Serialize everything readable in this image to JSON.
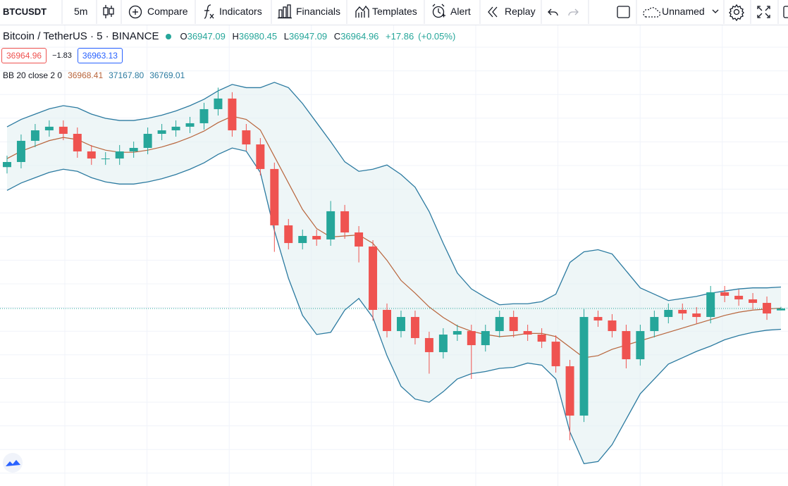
{
  "toolbar": {
    "symbol": "BTCUSDT",
    "interval": "5m",
    "compare": "Compare",
    "indicators": "Indicators",
    "financials": "Financials",
    "templates": "Templates",
    "alert": "Alert",
    "replay": "Replay",
    "layout_name": "Unnamed"
  },
  "legend": {
    "symbol": "Bitcoin / TetherUS · 5 · BINANCE",
    "open_label": "O",
    "high_label": "H",
    "low_label": "L",
    "close_label": "C",
    "change": "+17.86",
    "change_percent": "(+0.05%)",
    "spread": "−1.83",
    "buy_price": "36963.13",
    "indicator": "BB 20 close 2 0",
    "bb_basis": "36968.41",
    "bb_upper": "37167.80",
    "bb_lower": "36769.01"
  },
  "chart_data": {
    "type": "candlestick",
    "up_color": "#26a69a",
    "down_color": "#ef5350",
    "ylim": [
      35316,
      39638
    ],
    "open": [
      38300,
      38348,
      38548,
      38647,
      38681,
      38614,
      38448,
      38381,
      38381,
      38448,
      38481,
      38614,
      38647,
      38681,
      38714,
      38847,
      38947,
      38647,
      38514,
      38282,
      37750,
      37583,
      37650,
      37617,
      37883,
      37683,
      37550,
      36952,
      36752,
      36885,
      36686,
      36553,
      36719,
      36752,
      36619,
      36752,
      36885,
      36752,
      36719,
      36652,
      36420,
      35954,
      36885,
      36852,
      36752,
      36486,
      36752,
      36885,
      36952,
      36918,
      36885,
      37118,
      37085,
      37051,
      37018,
      36947.09
    ],
    "high": [
      38408,
      38608,
      38707,
      38741,
      38741,
      38674,
      38508,
      38441,
      38508,
      38541,
      38674,
      38707,
      38741,
      38774,
      38907,
      39050,
      39007,
      38707,
      38574,
      38342,
      37810,
      37710,
      37710,
      37980,
      37943,
      37743,
      37610,
      37012,
      36945,
      36945,
      36746,
      36779,
      36812,
      36812,
      36812,
      36945,
      36945,
      36812,
      36779,
      36712,
      36480,
      36960,
      36945,
      36912,
      36812,
      36812,
      36945,
      37012,
      37012,
      36978,
      37178,
      37178,
      37145,
      37111,
      37078,
      36980.45
    ],
    "low": [
      38240,
      38288,
      38488,
      38587,
      38554,
      38388,
      38321,
      38321,
      38321,
      38388,
      38421,
      38554,
      38587,
      38621,
      38654,
      38787,
      38587,
      38454,
      38222,
      37500,
      37523,
      37523,
      37557,
      37557,
      37623,
      37400,
      36850,
      36692,
      36692,
      36626,
      36350,
      36493,
      36659,
      36300,
      36559,
      36692,
      36692,
      36659,
      36592,
      36360,
      35721,
      35894,
      36792,
      36692,
      36400,
      36426,
      36692,
      36825,
      36858,
      36825,
      36825,
      37025,
      36991,
      36958,
      36858,
      36947.09
    ],
    "close": [
      38348,
      38548,
      38647,
      38681,
      38614,
      38448,
      38381,
      38381,
      38448,
      38481,
      38614,
      38647,
      38681,
      38714,
      38847,
      38947,
      38647,
      38514,
      38282,
      37750,
      37583,
      37650,
      37617,
      37883,
      37683,
      37550,
      36952,
      36752,
      36885,
      36686,
      36553,
      36719,
      36752,
      36619,
      36752,
      36885,
      36752,
      36719,
      36652,
      36420,
      35954,
      36885,
      36852,
      36752,
      36486,
      36752,
      36885,
      36952,
      36918,
      36885,
      37118,
      37085,
      37051,
      37018,
      36918,
      36964.96
    ],
    "bands": {
      "band_color": "#2b7aa0",
      "basis_color": "#b8653c",
      "fill": "#e3f0f2",
      "upper": [
        38680,
        38750,
        38800,
        38850,
        38880,
        38860,
        38800,
        38760,
        38740,
        38740,
        38760,
        38790,
        38830,
        38880,
        38940,
        39020,
        39080,
        39050,
        39050,
        39100,
        39050,
        38900,
        38720,
        38540,
        38350,
        38260,
        38280,
        38320,
        38230,
        38110,
        37880,
        37580,
        37300,
        37150,
        37070,
        37000,
        37010,
        37010,
        37030,
        37100,
        37400,
        37500,
        37520,
        37480,
        37320,
        37160,
        37100,
        37040,
        37060,
        37080,
        37110,
        37130,
        37150,
        37160,
        37160,
        37167.8
      ],
      "basis": [
        38380,
        38450,
        38500,
        38550,
        38580,
        38560,
        38500,
        38460,
        38440,
        38440,
        38460,
        38490,
        38530,
        38580,
        38640,
        38720,
        38780,
        38750,
        38650,
        38400,
        38150,
        37900,
        37720,
        37640,
        37650,
        37660,
        37580,
        37420,
        37230,
        37110,
        36980,
        36880,
        36800,
        36750,
        36720,
        36700,
        36710,
        36730,
        36730,
        36700,
        36600,
        36500,
        36520,
        36580,
        36620,
        36660,
        36700,
        36740,
        36780,
        36820,
        36860,
        36900,
        36930,
        36950,
        36960,
        36968.41
      ],
      "lower": [
        38080,
        38150,
        38200,
        38250,
        38280,
        38260,
        38200,
        38160,
        38140,
        38140,
        38160,
        38190,
        38230,
        38280,
        38340,
        38420,
        38480,
        38450,
        38250,
        37700,
        37250,
        36900,
        36720,
        36740,
        36950,
        37060,
        36880,
        36520,
        36230,
        36110,
        36080,
        36180,
        36300,
        36350,
        36370,
        36400,
        36410,
        36450,
        36430,
        36300,
        35800,
        35500,
        35520,
        35680,
        35920,
        36160,
        36300,
        36440,
        36500,
        36560,
        36610,
        36670,
        36710,
        36740,
        36760,
        36769.01
      ]
    }
  }
}
